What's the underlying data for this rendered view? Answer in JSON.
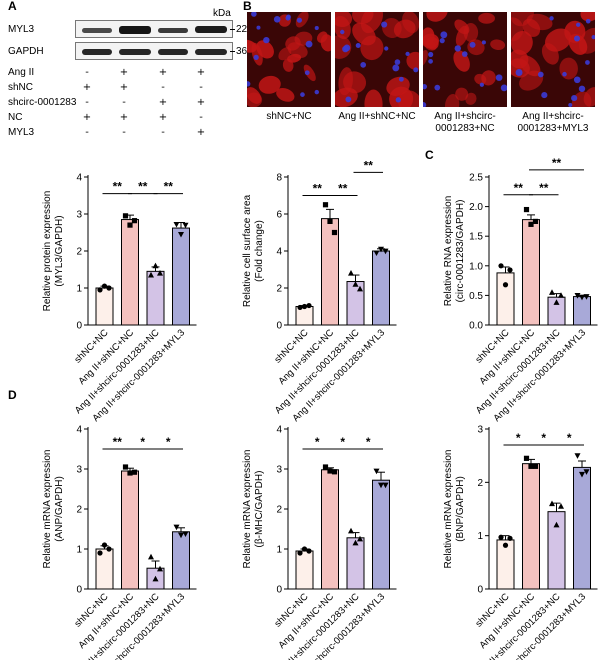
{
  "panels": {
    "A": "A",
    "B": "B",
    "C": "C",
    "D": "D"
  },
  "western_blot": {
    "unit": "kDa",
    "rows": [
      {
        "protein": "MYL3",
        "marker": "22"
      },
      {
        "protein": "GAPDH",
        "marker": "36"
      }
    ],
    "treatments": [
      {
        "name": "Ang II",
        "signs": [
          "-",
          "+",
          "+",
          "+"
        ]
      },
      {
        "name": "shNC",
        "signs": [
          "+",
          "+",
          "-",
          "-"
        ]
      },
      {
        "name": "shcirc-0001283",
        "signs": [
          "-",
          "-",
          "+",
          "+"
        ]
      },
      {
        "name": "NC",
        "signs": [
          "+",
          "+",
          "+",
          "-"
        ]
      },
      {
        "name": "MYL3",
        "signs": [
          "-",
          "-",
          "-",
          "+"
        ]
      }
    ]
  },
  "micrographs": {
    "captions": [
      "shNC+NC",
      "Ang II+shNC+NC",
      "Ang II+shcirc-\n0001283+NC",
      "Ang II+shcirc-\n0001283+MYL3"
    ]
  },
  "colors": {
    "bar_fills": [
      "#fdf0ea",
      "#f4c2bf",
      "#d3c3e6",
      "#a8a9d8"
    ],
    "micro_red": "#c21616",
    "micro_blue": "#3b3bd6"
  },
  "chart_data": [
    {
      "type": "bar",
      "panel": "A",
      "categories": [
        "shNC+NC",
        "Ang II+shNC+NC",
        "Ang II+shcirc-0001283+NC",
        "Ang II+shcirc-0001283+MYL3"
      ],
      "values": [
        1.0,
        2.85,
        1.45,
        2.62
      ],
      "errors": [
        0.05,
        0.12,
        0.12,
        0.15
      ],
      "points": [
        [
          0.95,
          1.05,
          1.0
        ],
        [
          2.95,
          2.7,
          2.82
        ],
        [
          1.35,
          1.6,
          1.4
        ],
        [
          2.72,
          2.45,
          2.7
        ]
      ],
      "markers": [
        "circle",
        "square",
        "triangle",
        "inverted-triangle"
      ],
      "ylabel": "Relative protein expression\n(MYL3/GAPDH)",
      "ylim": [
        0,
        4
      ],
      "yticks": [
        0,
        1,
        2,
        3,
        4
      ],
      "significance": [
        {
          "from": 0,
          "to": 1,
          "label": "**",
          "level": 3.55
        },
        {
          "from": 1,
          "to": 2,
          "label": "**",
          "level": 3.55
        },
        {
          "from": 2,
          "to": 3,
          "label": "**",
          "level": 3.55
        }
      ]
    },
    {
      "type": "bar",
      "panel": "B",
      "categories": [
        "shNC+NC",
        "Ang II+shNC+NC",
        "Ang II+shcirc-0001283+NC",
        "Ang II+shcirc-0001283+MYL3"
      ],
      "values": [
        1.0,
        5.75,
        2.35,
        4.0
      ],
      "errors": [
        0.05,
        0.5,
        0.35,
        0.12
      ],
      "points": [
        [
          0.95,
          1.0,
          1.05
        ],
        [
          6.5,
          5.6,
          5.0
        ],
        [
          2.8,
          2.2,
          1.95
        ],
        [
          3.9,
          4.1,
          4.0
        ]
      ],
      "markers": [
        "circle",
        "square",
        "triangle",
        "inverted-triangle"
      ],
      "ylabel": "Relative cell surface area\n(Fold change)",
      "ylim": [
        0,
        8
      ],
      "yticks": [
        0,
        2,
        4,
        6,
        8
      ],
      "significance": [
        {
          "from": 0,
          "to": 1,
          "label": "**",
          "level": 7.0
        },
        {
          "from": 1,
          "to": 2,
          "label": "**",
          "level": 7.0
        },
        {
          "from": 2,
          "to": 3,
          "label": "**",
          "level": 8.25
        }
      ]
    },
    {
      "type": "bar",
      "panel": "C",
      "categories": [
        "shNC+NC",
        "Ang II+shNC+NC",
        "Ang II+shcirc-0001283+NC",
        "Ang II+shcirc-0001283+MYL3"
      ],
      "values": [
        0.88,
        1.78,
        0.47,
        0.48
      ],
      "errors": [
        0.1,
        0.08,
        0.06,
        0.02
      ],
      "points": [
        [
          1.0,
          0.68,
          0.93
        ],
        [
          1.95,
          1.7,
          1.75
        ],
        [
          0.55,
          0.38,
          0.5
        ],
        [
          0.5,
          0.47,
          0.48
        ]
      ],
      "markers": [
        "circle",
        "square",
        "triangle",
        "inverted-triangle"
      ],
      "ylabel": "Relative RNA expression\n(circ-0001283/GAPDH)",
      "ylim": [
        0,
        2.5
      ],
      "yticks": [
        0.0,
        0.5,
        1.0,
        1.5,
        2.0,
        2.5
      ],
      "significance": [
        {
          "from": 0,
          "to": 1,
          "label": "**",
          "level": 2.2
        },
        {
          "from": 1,
          "to": 2,
          "label": "**",
          "level": 2.2
        },
        {
          "from": 1,
          "to": 3,
          "label": "**",
          "level": 2.62
        }
      ]
    },
    {
      "type": "bar",
      "panel": "D1",
      "categories": [
        "shNC+NC",
        "Ang II+shNC+NC",
        "Ang II+shcirc-0001283+NC",
        "Ang II+shcirc-0001283+MYL3"
      ],
      "values": [
        1.0,
        2.95,
        0.52,
        1.43
      ],
      "errors": [
        0.08,
        0.07,
        0.18,
        0.1
      ],
      "points": [
        [
          0.9,
          1.1,
          1.0
        ],
        [
          3.05,
          2.9,
          2.92
        ],
        [
          0.8,
          0.25,
          0.5
        ],
        [
          1.55,
          1.35,
          1.38
        ]
      ],
      "markers": [
        "circle",
        "square",
        "triangle",
        "inverted-triangle"
      ],
      "ylabel": "Relative mRNA expression\n(ANP/GAPDH)",
      "ylim": [
        0,
        4
      ],
      "yticks": [
        0,
        1,
        2,
        3,
        4
      ],
      "significance": [
        {
          "from": 0,
          "to": 1,
          "label": "**",
          "level": 3.5
        },
        {
          "from": 1,
          "to": 2,
          "label": "*",
          "level": 3.5
        },
        {
          "from": 2,
          "to": 3,
          "label": "*",
          "level": 3.5
        }
      ]
    },
    {
      "type": "bar",
      "panel": "D2",
      "categories": [
        "shNC+NC",
        "Ang II+shNC+NC",
        "Ang II+shcirc-0001283+NC",
        "Ang II+shcirc-0001283+MYL3"
      ],
      "values": [
        0.95,
        2.98,
        1.28,
        2.72
      ],
      "errors": [
        0.05,
        0.05,
        0.13,
        0.2
      ],
      "points": [
        [
          0.9,
          1.0,
          0.95
        ],
        [
          3.05,
          2.95,
          2.93
        ],
        [
          1.45,
          1.15,
          1.25
        ],
        [
          2.95,
          2.6,
          2.6
        ]
      ],
      "markers": [
        "circle",
        "square",
        "triangle",
        "inverted-triangle"
      ],
      "ylabel": "Relative mRNA expression\n(β-MHC/GAPDH)",
      "ylim": [
        0,
        4
      ],
      "yticks": [
        0,
        1,
        2,
        3,
        4
      ],
      "significance": [
        {
          "from": 0,
          "to": 1,
          "label": "*",
          "level": 3.5
        },
        {
          "from": 1,
          "to": 2,
          "label": "*",
          "level": 3.5
        },
        {
          "from": 2,
          "to": 3,
          "label": "*",
          "level": 3.5
        }
      ]
    },
    {
      "type": "bar",
      "panel": "D3",
      "categories": [
        "shNC+NC",
        "Ang II+shNC+NC",
        "Ang II+shcirc-0001283+NC",
        "Ang II+shcirc-0001283+MYL3"
      ],
      "values": [
        0.92,
        2.35,
        1.45,
        2.28
      ],
      "errors": [
        0.08,
        0.08,
        0.16,
        0.12
      ],
      "points": [
        [
          0.97,
          0.82,
          0.95
        ],
        [
          2.45,
          2.3,
          2.3
        ],
        [
          1.6,
          1.2,
          1.55
        ],
        [
          2.5,
          2.15,
          2.2
        ]
      ],
      "markers": [
        "circle",
        "square",
        "triangle",
        "inverted-triangle"
      ],
      "ylabel": "Relative mRNA expression\n(BNP/GAPDH)",
      "ylim": [
        0,
        3
      ],
      "yticks": [
        0,
        1,
        2,
        3
      ],
      "significance": [
        {
          "from": 0,
          "to": 1,
          "label": "*",
          "level": 2.7
        },
        {
          "from": 1,
          "to": 2,
          "label": "*",
          "level": 2.7
        },
        {
          "from": 2,
          "to": 3,
          "label": "*",
          "level": 2.7
        }
      ]
    }
  ]
}
